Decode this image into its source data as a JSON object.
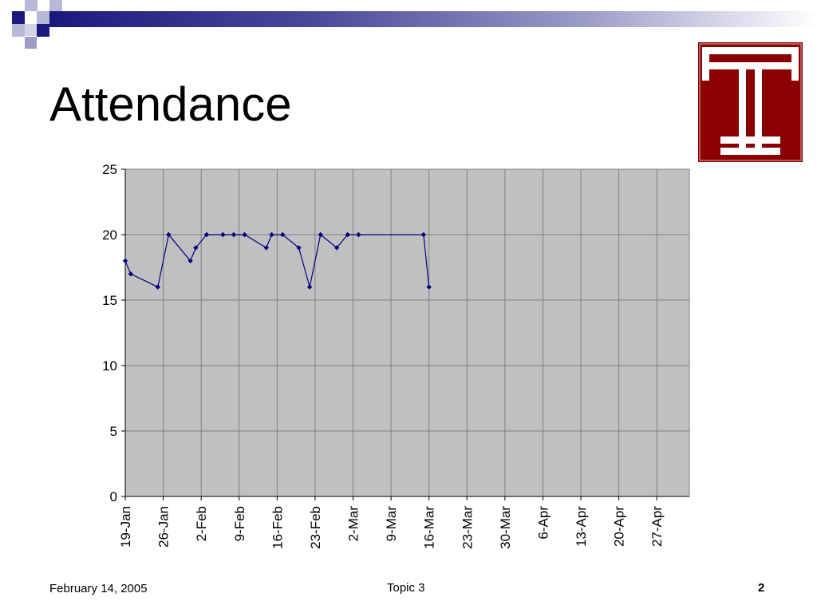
{
  "slide": {
    "title": "Attendance",
    "footer_date": "February 14, 2005",
    "footer_topic": "Topic 3",
    "page_number": "2"
  },
  "logo": {
    "icon": "temple-t-logo-icon",
    "color": "#8b0000"
  },
  "colors": {
    "accent_dark": "#1a1a7e",
    "accent_light": "#9c9cc8",
    "plot_bg": "#c0c0c0",
    "line": "#000080"
  },
  "chart_data": {
    "type": "line",
    "title": "",
    "xlabel": "",
    "ylabel": "",
    "xlim": [
      "2005-01-19",
      "2005-05-03"
    ],
    "ylim": [
      0,
      25
    ],
    "y_ticks": [
      0,
      5,
      10,
      15,
      20,
      25
    ],
    "x_tick_labels": [
      "19-Jan",
      "26-Jan",
      "2-Feb",
      "9-Feb",
      "16-Feb",
      "23-Feb",
      "2-Mar",
      "9-Mar",
      "16-Mar",
      "23-Mar",
      "30-Mar",
      "6-Apr",
      "13-Apr",
      "20-Apr",
      "27-Apr"
    ],
    "grid": true,
    "legend": "none",
    "series": [
      {
        "x": [
          "2005-01-19",
          "2005-01-20",
          "2005-01-25",
          "2005-01-27",
          "2005-01-31",
          "2005-02-01",
          "2005-02-03",
          "2005-02-06",
          "2005-02-08",
          "2005-02-10",
          "2005-02-14",
          "2005-02-15",
          "2005-02-17",
          "2005-02-20",
          "2005-02-22",
          "2005-02-24",
          "2005-02-27",
          "2005-03-01",
          "2005-03-03",
          "2005-03-15",
          "2005-03-16"
        ],
        "y": [
          18,
          17,
          16,
          20,
          18,
          19,
          20,
          20,
          20,
          20,
          19,
          20,
          20,
          19,
          16,
          20,
          19,
          20,
          20,
          20,
          16
        ]
      }
    ]
  }
}
